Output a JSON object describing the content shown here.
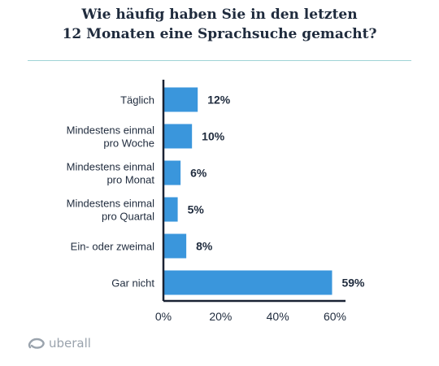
{
  "header": {
    "title_line1": "Wie häufig haben Sie in den letzten",
    "title_line2": "12 Monaten eine Sprachsuche gemacht?"
  },
  "brand": {
    "name": "uberall",
    "icon": "uberall-logo-icon"
  },
  "colors": {
    "bar": "#3a96dc",
    "axis": "#1a2233",
    "text": "#1f2b3d",
    "rule": "#9fd3d6"
  },
  "chart_data": {
    "type": "bar",
    "orientation": "horizontal",
    "categories": [
      [
        "Täglich"
      ],
      [
        "Mindestens einmal",
        "pro Woche"
      ],
      [
        "Mindestens einmal",
        "pro Monat"
      ],
      [
        "Mindestens einmal",
        "pro Quartal"
      ],
      [
        "Ein- oder zweimal"
      ],
      [
        "Gar nicht"
      ]
    ],
    "values": [
      12,
      10,
      6,
      5,
      8,
      59
    ],
    "value_labels": [
      "12%",
      "10%",
      "6%",
      "5%",
      "8%",
      "59%"
    ],
    "xticks": [
      0,
      20,
      40,
      60
    ],
    "xtick_labels": [
      "0%",
      "20%",
      "40%",
      "60%"
    ],
    "xlim": [
      0,
      60
    ],
    "grid": false,
    "legend": "none"
  }
}
